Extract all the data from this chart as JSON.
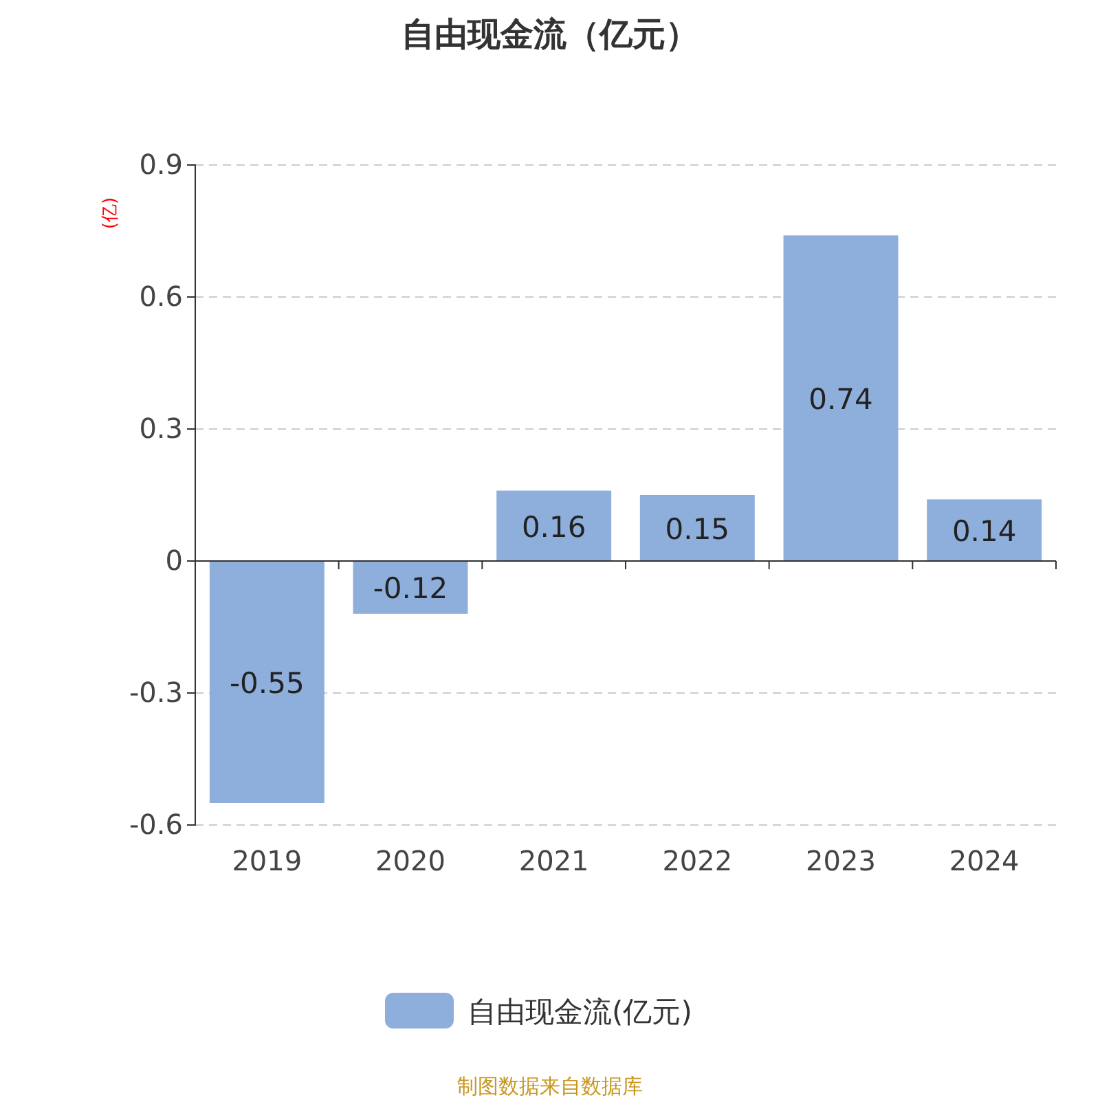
{
  "chart_data": {
    "type": "bar",
    "title": "自由现金流（亿元）",
    "ylabel": "(亿)",
    "categories": [
      "2019",
      "2020",
      "2021",
      "2022",
      "2023",
      "2024"
    ],
    "series": [
      {
        "name": "自由现金流(亿元)",
        "color": "#8eaedb",
        "values": [
          -0.55,
          -0.12,
          0.16,
          0.15,
          0.74,
          0.14
        ]
      }
    ],
    "ylim": [
      -0.6,
      0.9
    ],
    "yticks": [
      -0.6,
      -0.3,
      0,
      0.3,
      0.6,
      0.9
    ],
    "grid": "y",
    "legend": "bottom",
    "data_labels": true,
    "annotations": [
      "制图数据来自数据库"
    ]
  }
}
